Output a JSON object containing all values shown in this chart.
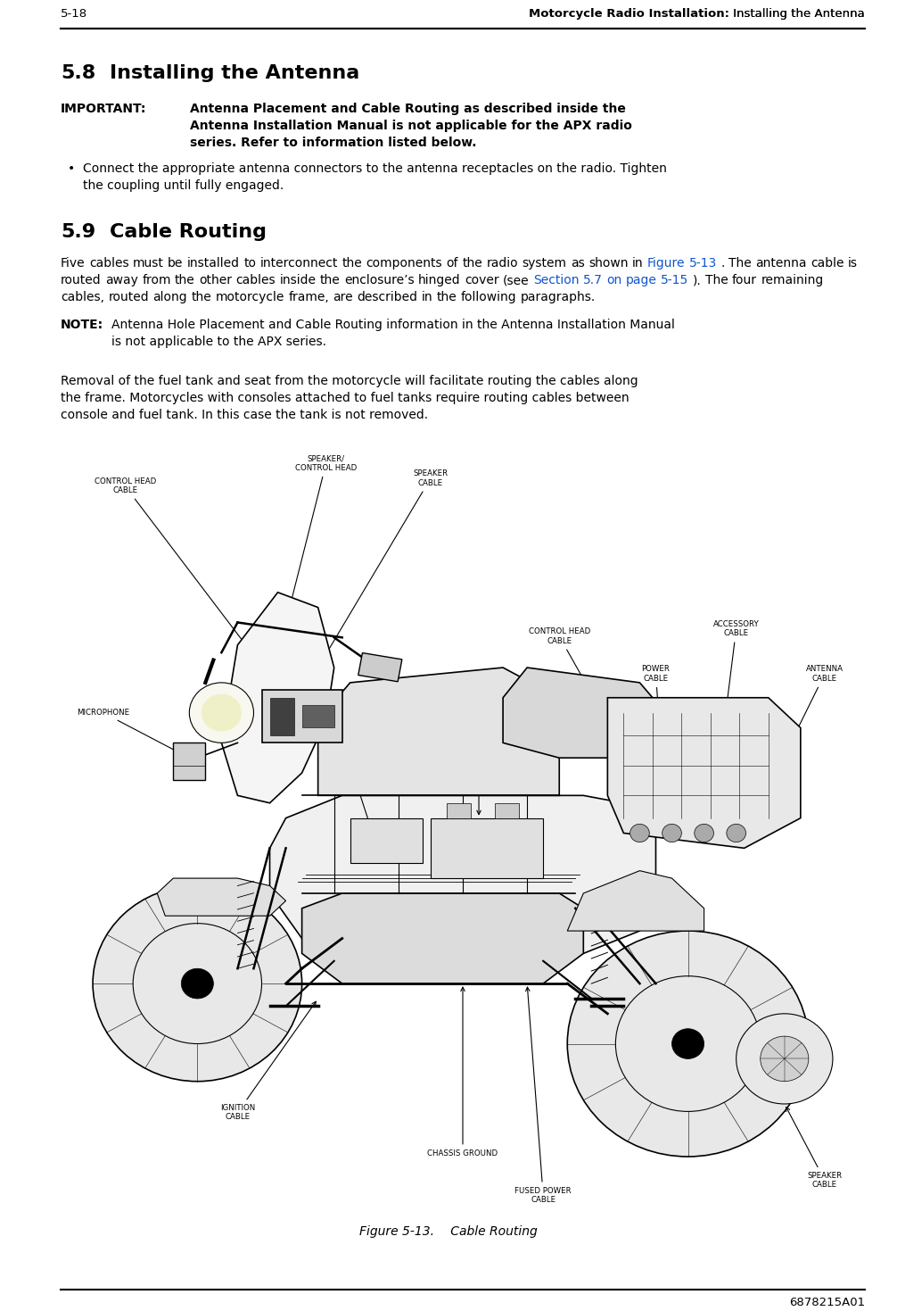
{
  "page_number": "5-18",
  "header_bold": "Motorcycle Radio Installation:",
  "header_normal": " Installing the Antenna",
  "sec58": "5.8",
  "sec58_title": "Installing the Antenna",
  "important_label": "IMPORTANT:",
  "important_body": "Antenna Placement and Cable Routing as described inside the Antenna Installation Manual is not applicable for the APX radio series. Refer to information listed below.",
  "bullet": "Connect the appropriate antenna connectors to the antenna receptacles on the radio. Tighten the coupling until fully engaged.",
  "sec59": "5.9",
  "sec59_title": "Cable Routing",
  "para1_a": "Five cables must be installed to interconnect the components of the radio system as shown in ",
  "para1_link1": "Figure 5-13",
  "para1_b": ". The antenna cable is routed away from the other cables inside the enclosure’s hinged cover (see ",
  "para1_link2": "Section 5.7 on page 5-15",
  "para1_c": "). The four remaining cables, routed along the motorcycle frame, are described in the following paragraphs.",
  "note_label": "NOTE:",
  "note_body": "Antenna Hole Placement and Cable Routing information in the Antenna Installation Manual is not applicable to the APX series.",
  "para2": "Removal of the fuel tank and seat from the motorcycle will facilitate routing the cables along the frame. Motorcycles with consoles attached to fuel tanks require routing cables between console and fuel tank. In this case the tank is not removed.",
  "fig_caption": "Figure 5-13.  Cable Routing",
  "footer": "6878215A01",
  "link_color": "#1155CC",
  "text_color": "#000000",
  "bg_color": "#ffffff"
}
